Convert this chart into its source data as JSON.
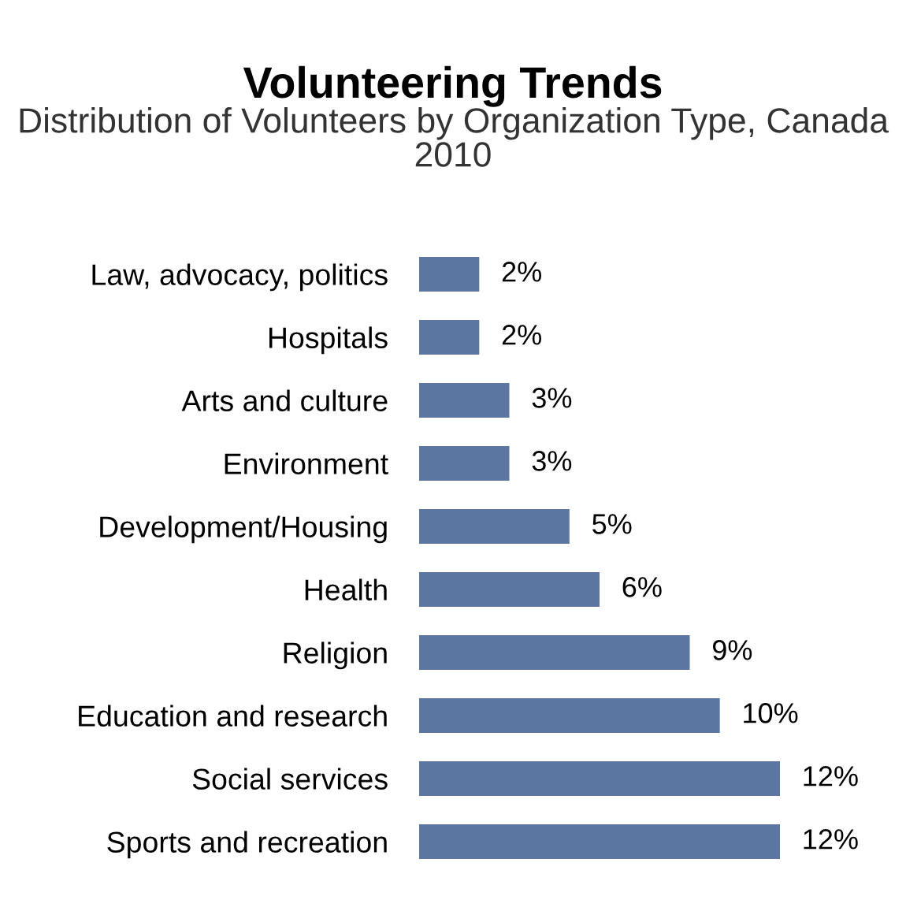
{
  "chart_data": {
    "type": "bar",
    "orientation": "horizontal",
    "title": "Volunteering Trends",
    "subtitle": "Distribution of Volunteers by Organization Type, Canada 2010",
    "categories": [
      "Law, advocacy, politics",
      "Hospitals",
      "Arts and culture",
      "Environment",
      "Development/Housing",
      "Health",
      "Religion",
      "Education and research",
      "Social services",
      "Sports and recreation"
    ],
    "values": [
      2,
      2,
      3,
      3,
      5,
      6,
      9,
      10,
      12,
      12
    ],
    "value_labels": [
      "2%",
      "2%",
      "3%",
      "3%",
      "5%",
      "6%",
      "9%",
      "10%",
      "12%",
      "12%"
    ],
    "color": "#5b77a1",
    "grid": false,
    "legend": false
  }
}
